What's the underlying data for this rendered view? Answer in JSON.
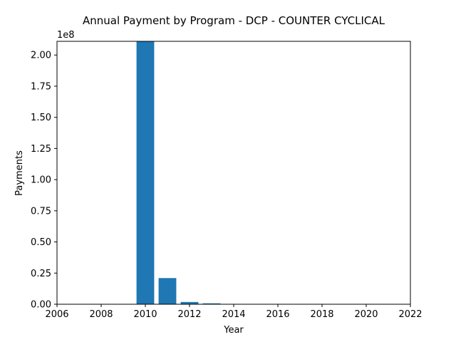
{
  "chart_data": {
    "type": "bar",
    "title": "Annual Payment by Program - DCP - COUNTER CYCLICAL",
    "xlabel": "Year",
    "ylabel": "Payments",
    "y_offset_label": "1e8",
    "x": [
      2010,
      2011,
      2012,
      2013,
      2014,
      2015
    ],
    "values": [
      211000000,
      21000000,
      1800000,
      700000,
      150000,
      50000
    ],
    "xlim": [
      2006,
      2022
    ],
    "ylim": [
      0,
      211000000
    ],
    "x_ticks": [
      2006,
      2008,
      2010,
      2012,
      2014,
      2016,
      2018,
      2020,
      2022
    ],
    "x_tick_labels": [
      "2006",
      "2008",
      "2010",
      "2012",
      "2014",
      "2016",
      "2018",
      "2020",
      "2022"
    ],
    "y_ticks": [
      0,
      25000000,
      50000000,
      75000000,
      100000000,
      125000000,
      150000000,
      175000000,
      200000000
    ],
    "y_tick_labels": [
      "0.00",
      "0.25",
      "0.50",
      "0.75",
      "1.00",
      "1.25",
      "1.50",
      "1.75",
      "2.00"
    ],
    "bar_width": 0.8,
    "grid": false,
    "legend": "none",
    "bar_color": "#1f77b4"
  }
}
